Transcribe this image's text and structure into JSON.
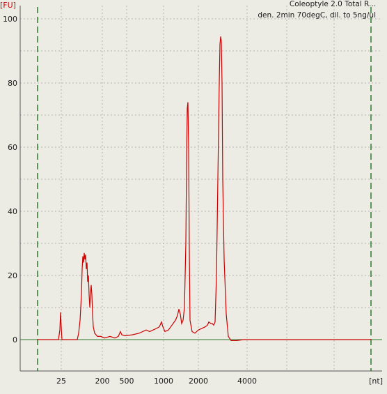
{
  "chart_data": {
    "type": "line",
    "title": "Coleoptyle 2.0 Total R...",
    "subtitle": "den. 2min 70degC, dil. to 5ng/ul",
    "ylabel": "[FU]",
    "xlabel": "[nt]",
    "ylim": [
      -10,
      102
    ],
    "x_tick_labels": [
      "25",
      "200",
      "500",
      "1000",
      "2000",
      "4000"
    ],
    "y_tick_values": [
      0,
      20,
      40,
      60,
      80,
      100
    ],
    "grid": true,
    "colors": {
      "background": "#ecebe4",
      "trace": "#cc0000",
      "baseline": "#2a7a2a",
      "markers": "#2a7a2a",
      "axis_label": "#cc0000",
      "grid": "#b6b6b6"
    },
    "series": [
      {
        "values_note_free": true,
        "x": [],
        "y": []
      }
    ]
  }
}
